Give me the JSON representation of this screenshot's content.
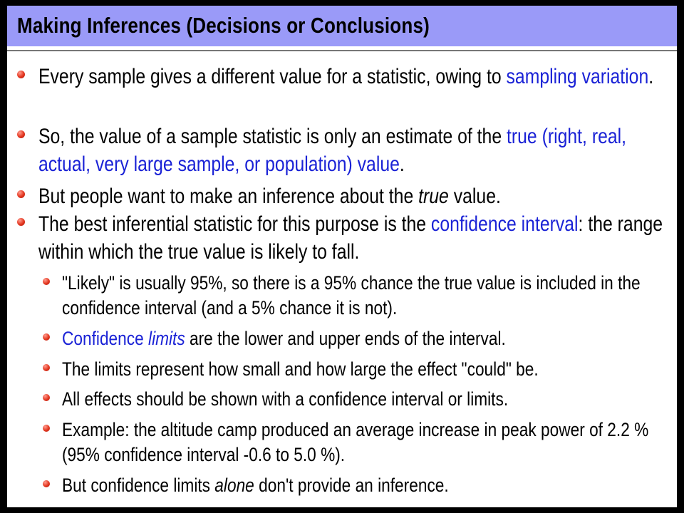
{
  "slide": {
    "title": "Making Inferences (Decisions or Conclusions)",
    "accent_colors": {
      "title_bar": "#9a9af8",
      "highlight_text": "#1a22d6",
      "bullet": "#e3361f"
    },
    "bullets": [
      {
        "level": 1,
        "parts": [
          {
            "text": "Every sample gives a different value for a statistic, owing to "
          },
          {
            "text": "sampling variation",
            "style": "blue"
          },
          {
            "text": "."
          }
        ]
      },
      {
        "level": 1,
        "parts": [
          {
            "text": "So, the value of a sample statistic is only an estimate of the "
          },
          {
            "text": "true (right, real, actual, very large sample, or population) value",
            "style": "blue"
          },
          {
            "text": "."
          }
        ]
      },
      {
        "level": 1,
        "parts": [
          {
            "text": "But people want to make an inference about the "
          },
          {
            "text": "true",
            "style": "italic"
          },
          {
            "text": " value."
          }
        ]
      },
      {
        "level": 1,
        "parts": [
          {
            "text": "The best inferential statistic for this purpose is the "
          },
          {
            "text": "confidence interval",
            "style": "blue"
          },
          {
            "text": ": the range within which the true value is likely to fall."
          }
        ]
      },
      {
        "level": 2,
        "parts": [
          {
            "text": "\"Likely\" is usually 95%, so there is a 95% chance the true value is included in the confidence interval (and a 5% chance it is not)."
          }
        ]
      },
      {
        "level": 2,
        "parts": [
          {
            "text": "Confidence ",
            "style": "blue"
          },
          {
            "text": "limits",
            "style": "blue-italic"
          },
          {
            "text": " are the lower and upper ends of the interval."
          }
        ]
      },
      {
        "level": 2,
        "parts": [
          {
            "text": "The limits represent how small and how large the effect \"could\" be."
          }
        ]
      },
      {
        "level": 2,
        "parts": [
          {
            "text": "All effects should be shown with a confidence interval or limits."
          }
        ]
      },
      {
        "level": 2,
        "parts": [
          {
            "text": "Example: the altitude camp produced an average increase in peak power of 2.2 % (95% confidence interval -0.6 to 5.0 %)."
          }
        ]
      },
      {
        "level": 2,
        "parts": [
          {
            "text": "But confidence limits "
          },
          {
            "text": "alone",
            "style": "italic"
          },
          {
            "text": " don't provide an inference."
          }
        ]
      }
    ]
  }
}
